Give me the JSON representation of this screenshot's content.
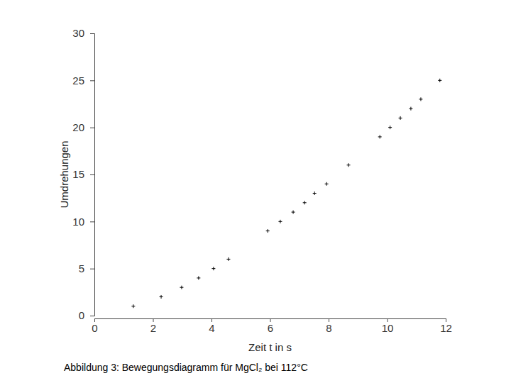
{
  "chart_data": {
    "type": "scatter",
    "title": "Abbildung 3: Bewegungsdiagramm für MgCl₂ bei 112°C",
    "x_label": "Zeit t in s",
    "y_label": "Umdrehungen",
    "x": [
      1.33,
      2.28,
      2.98,
      3.56,
      4.07,
      4.58,
      5.92,
      6.35,
      6.79,
      7.18,
      7.52,
      7.93,
      8.68,
      9.75,
      10.1,
      10.45,
      10.81,
      11.15,
      11.8
    ],
    "values": [
      1,
      2,
      3,
      4,
      5,
      6,
      9,
      10,
      11,
      12,
      13,
      14,
      16,
      19,
      20,
      21,
      22,
      23,
      25
    ],
    "xlim": [
      0,
      12
    ],
    "ylim": [
      0,
      30
    ],
    "xticks": [
      0,
      2,
      4,
      6,
      8,
      10,
      12
    ],
    "yticks": [
      0,
      5,
      10,
      15,
      20,
      25,
      30
    ],
    "color": "#000000",
    "marker": "plus",
    "grid": false
  }
}
